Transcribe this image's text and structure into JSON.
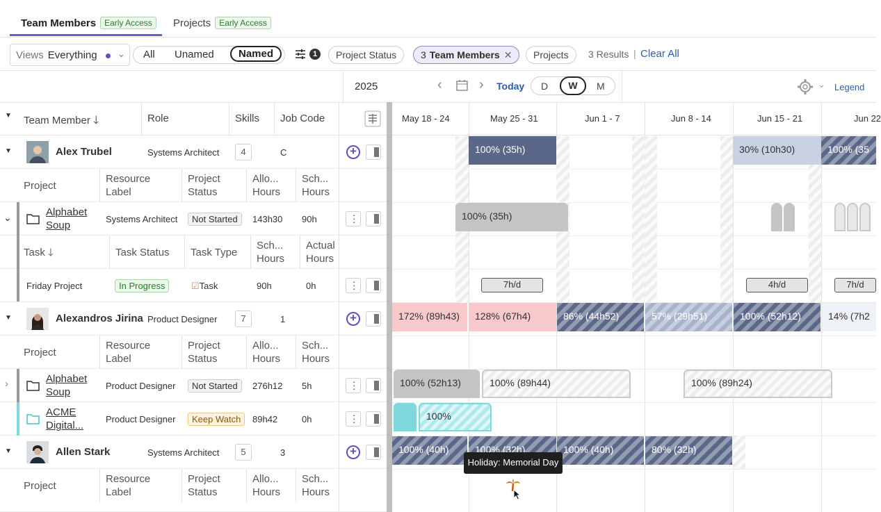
{
  "tabs": [
    {
      "label": "Team Members",
      "badge": "Early Access"
    },
    {
      "label": "Projects",
      "badge": "Early Access"
    }
  ],
  "filters": {
    "views_label": "Views",
    "views_value": "Everything",
    "seg": [
      "All",
      "Unamed",
      "Named"
    ],
    "filter_count": "1",
    "chip_project_status": "Project Status",
    "chip_team_count": "3",
    "chip_team": "Team Members",
    "chip_projects": "Projects",
    "results": "3 Results",
    "separator": "|",
    "clear_all": "Clear All"
  },
  "datebar": {
    "year": "2025",
    "today": "Today",
    "views": [
      "D",
      "W",
      "M"
    ],
    "legend": "Legend"
  },
  "columns": {
    "team_member": "Team Member",
    "role": "Role",
    "skills": "Skills",
    "job_code": "Job Code"
  },
  "weeks": [
    "May 18 - 24",
    "May 25 - 31",
    "Jun 1 - 7",
    "Jun 8 - 14",
    "Jun 15 - 21",
    "Jun 22"
  ],
  "subheaders": {
    "project": "Project",
    "resource_label": "Resource Label",
    "project_status": "Project Status",
    "allo_hours": "Allo... Hours",
    "sch_hours": "Sch... Hours",
    "task": "Task",
    "task_status": "Task Status",
    "task_type": "Task Type",
    "actual_hours": "Actual Hours"
  },
  "members": [
    {
      "name": "Alex Trubel",
      "role": "Systems Architect",
      "skills": "4",
      "job": "C"
    },
    {
      "name": "Alexandros Jirina",
      "role": "Product Designer",
      "skills": "7",
      "job": "1"
    },
    {
      "name": "Allen Stark",
      "role": "Systems Architect",
      "skills": "5",
      "job": "3"
    }
  ],
  "projects": [
    {
      "name": "Alphabet Soup",
      "label": "Systems Architect",
      "status": "Not Started",
      "allo": "143h30",
      "sch": "90h"
    },
    {
      "name": "Alphabet Soup",
      "label": "Product Designer",
      "status": "Not Started",
      "allo": "276h12",
      "sch": "5h"
    },
    {
      "name": "ACME Digital...",
      "label": "Product Designer",
      "status": "Keep Watch",
      "allo": "89h42",
      "sch": "0h"
    }
  ],
  "task": {
    "name": "Friday Project",
    "status": "In Progress",
    "type": "Task",
    "sch": "90h",
    "actual": "0h"
  },
  "bars": {
    "alex": [
      "100% (35h)",
      "30% (10h30)",
      "100% (35"
    ],
    "alex_project": "100% (35h)",
    "task_pills": [
      "7h/d",
      "4h/d",
      "7h/d"
    ],
    "jirina": [
      "172% (89h43)",
      "128% (67h4)",
      "86% (44h52)",
      "57% (29h51)",
      "100% (52h12)",
      "14% (7h2"
    ],
    "jirina_alphabet": [
      "100% (52h13)",
      "100% (89h44)",
      "100% (89h24)"
    ],
    "jirina_acme": "100%",
    "stark": [
      "100% (40h)",
      "100% (32h)",
      "100% (40h)",
      "80% (32h)"
    ]
  },
  "tooltip": "Holiday: Memorial Day",
  "colors": {
    "accent": "#5b51c7",
    "dark_bar": "#5b6788",
    "over_bar": "#f8c9cb",
    "teal": "#7fd8dc"
  }
}
